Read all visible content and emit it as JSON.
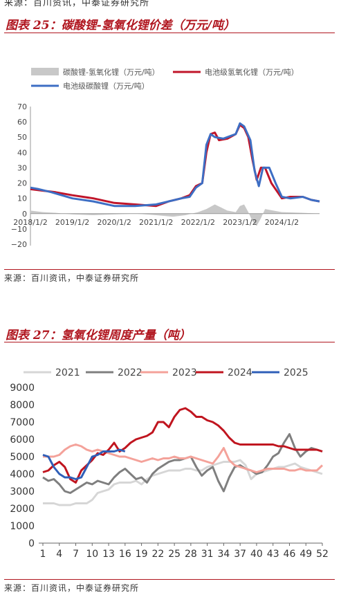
{
  "top_source": "来源：百川资讯，中泰证券研究所",
  "figures": [
    {
      "title": "图表 25：碳酸锂-氢氧化锂价差（万元/吨）",
      "source": "来源：百川资讯，中泰证券研究所",
      "chart_data": {
        "type": "line",
        "x_tick_labels": [
          "2018/1/2",
          "2019/1/2",
          "2020/1/2",
          "2021/1/2",
          "2022/1/2",
          "2023/1/2",
          "2024/1/2"
        ],
        "y_ticks": [
          -20,
          -10,
          0,
          10,
          20,
          30,
          40,
          50,
          60,
          70
        ],
        "ylim": [
          -20,
          70
        ],
        "xlim": [
          2018.0,
          2024.9
        ],
        "legend": "top",
        "series": [
          {
            "name": "碳酸锂-氢氧化锂（万元/吨）",
            "kind": "area",
            "color": "#c8c8c8",
            "points": [
              [
                2018.0,
                2
              ],
              [
                2018.3,
                1
              ],
              [
                2018.6,
                0.5
              ],
              [
                2019.0,
                -0.5
              ],
              [
                2019.5,
                -1
              ],
              [
                2020.0,
                -0.5
              ],
              [
                2020.5,
                0
              ],
              [
                2021.0,
                -1
              ],
              [
                2021.4,
                -2
              ],
              [
                2021.7,
                -1
              ],
              [
                2022.0,
                1
              ],
              [
                2022.2,
                3
              ],
              [
                2022.4,
                6
              ],
              [
                2022.55,
                4
              ],
              [
                2022.7,
                2
              ],
              [
                2022.9,
                1
              ],
              [
                2023.0,
                5
              ],
              [
                2023.1,
                6
              ],
              [
                2023.2,
                1
              ],
              [
                2023.3,
                -5
              ],
              [
                2023.4,
                -8
              ],
              [
                2023.5,
                -3
              ],
              [
                2023.6,
                3
              ],
              [
                2023.8,
                2
              ],
              [
                2024.0,
                1
              ],
              [
                2024.5,
                0.5
              ],
              [
                2024.9,
                0
              ]
            ]
          },
          {
            "name": "电池级氢氧化锂（万元/吨）",
            "kind": "line",
            "color": "#c0152a",
            "points": [
              [
                2018.0,
                16
              ],
              [
                2018.3,
                15
              ],
              [
                2018.6,
                14
              ],
              [
                2019.0,
                12
              ],
              [
                2019.5,
                10
              ],
              [
                2020.0,
                7
              ],
              [
                2020.5,
                6
              ],
              [
                2021.0,
                5
              ],
              [
                2021.3,
                8
              ],
              [
                2021.6,
                10
              ],
              [
                2021.8,
                12
              ],
              [
                2021.95,
                18
              ],
              [
                2022.1,
                20
              ],
              [
                2022.2,
                40
              ],
              [
                2022.3,
                52
              ],
              [
                2022.4,
                53
              ],
              [
                2022.5,
                48
              ],
              [
                2022.7,
                49
              ],
              [
                2022.9,
                52
              ],
              [
                2023.0,
                58
              ],
              [
                2023.1,
                56
              ],
              [
                2023.2,
                50
              ],
              [
                2023.3,
                35
              ],
              [
                2023.4,
                22
              ],
              [
                2023.5,
                30
              ],
              [
                2023.6,
                30
              ],
              [
                2023.75,
                20
              ],
              [
                2023.9,
                14
              ],
              [
                2024.0,
                10
              ],
              [
                2024.2,
                11
              ],
              [
                2024.5,
                11
              ],
              [
                2024.7,
                9
              ],
              [
                2024.9,
                8
              ]
            ]
          },
          {
            "name": "电池级碳酸锂（万元/吨）",
            "kind": "line",
            "color": "#3d6ec4",
            "points": [
              [
                2018.0,
                17
              ],
              [
                2018.2,
                16
              ],
              [
                2018.5,
                14
              ],
              [
                2019.0,
                10
              ],
              [
                2019.5,
                8
              ],
              [
                2020.0,
                5
              ],
              [
                2020.5,
                5
              ],
              [
                2021.0,
                6
              ],
              [
                2021.3,
                8
              ],
              [
                2021.6,
                10
              ],
              [
                2021.8,
                11
              ],
              [
                2021.95,
                17
              ],
              [
                2022.1,
                20
              ],
              [
                2022.2,
                45
              ],
              [
                2022.3,
                52
              ],
              [
                2022.4,
                50
              ],
              [
                2022.6,
                49
              ],
              [
                2022.9,
                52
              ],
              [
                2023.0,
                59
              ],
              [
                2023.1,
                57
              ],
              [
                2023.25,
                48
              ],
              [
                2023.35,
                28
              ],
              [
                2023.45,
                18
              ],
              [
                2023.55,
                30
              ],
              [
                2023.7,
                30
              ],
              [
                2023.85,
                20
              ],
              [
                2024.0,
                11
              ],
              [
                2024.2,
                10
              ],
              [
                2024.5,
                11
              ],
              [
                2024.7,
                9
              ],
              [
                2024.9,
                8
              ]
            ]
          }
        ]
      }
    },
    {
      "title": "图表 27：氢氧化锂周度产量（吨）",
      "source": "来源：百川资讯，中泰证券研究所",
      "chart_data": {
        "type": "line",
        "xlim": [
          1,
          52
        ],
        "x_ticks": [
          1,
          4,
          7,
          10,
          13,
          16,
          19,
          22,
          25,
          28,
          31,
          34,
          37,
          40,
          43,
          46,
          49,
          52
        ],
        "ylim": [
          0,
          9000
        ],
        "y_ticks": [
          0,
          1000,
          2000,
          3000,
          4000,
          5000,
          6000,
          7000,
          8000,
          9000
        ],
        "legend": "top",
        "series": [
          {
            "name": "2021",
            "color": "#d6d6d6",
            "x": [
              1,
              2,
              3,
              4,
              5,
              6,
              7,
              8,
              9,
              10,
              11,
              12,
              13,
              14,
              15,
              16,
              17,
              18,
              19,
              20,
              21,
              22,
              23,
              24,
              25,
              26,
              27,
              28,
              29,
              30,
              31,
              32,
              33,
              34,
              35,
              36,
              37,
              38,
              39,
              40,
              41,
              42,
              43,
              44,
              45,
              46,
              47,
              48,
              49,
              50,
              51,
              52
            ],
            "values": [
              2300,
              2300,
              2300,
              2200,
              2200,
              2200,
              2300,
              2300,
              2300,
              2500,
              2900,
              3000,
              3100,
              3400,
              3500,
              3500,
              3500,
              3600,
              3400,
              3700,
              3900,
              4000,
              4100,
              4200,
              4200,
              4200,
              4300,
              4300,
              4200,
              4200,
              4400,
              4500,
              4600,
              4700,
              4700,
              4700,
              4800,
              4500,
              3700,
              4000,
              4100,
              4200,
              4300,
              4400,
              4400,
              4500,
              4600,
              4400,
              4300,
              4200,
              4100,
              4000
            ]
          },
          {
            "name": "2022",
            "color": "#7f7f7f",
            "x": [
              1,
              2,
              3,
              4,
              5,
              6,
              7,
              8,
              9,
              10,
              11,
              12,
              13,
              14,
              15,
              16,
              17,
              18,
              19,
              20,
              21,
              22,
              23,
              24,
              25,
              26,
              27,
              28,
              29,
              30,
              31,
              32,
              33,
              34,
              35,
              36,
              37,
              38,
              39,
              40,
              41,
              42,
              43,
              44,
              45,
              46,
              47,
              48,
              49,
              50,
              51,
              52
            ],
            "values": [
              3800,
              3600,
              3700,
              3400,
              3000,
              2900,
              3100,
              3300,
              3500,
              3400,
              3600,
              3500,
              3400,
              3800,
              4100,
              4300,
              4000,
              3700,
              3800,
              3500,
              4000,
              4300,
              4500,
              4700,
              4800,
              4800,
              4900,
              5000,
              4400,
              3900,
              4200,
              4400,
              3600,
              3000,
              3800,
              4400,
              4500,
              4300,
              4200,
              4000,
              4100,
              4500,
              5000,
              5200,
              5800,
              6300,
              5500,
              5000,
              5300,
              5500,
              5400,
              5300
            ]
          },
          {
            "name": "2023",
            "color": "#f4a29a",
            "x": [
              1,
              2,
              3,
              4,
              5,
              6,
              7,
              8,
              9,
              10,
              11,
              12,
              13,
              14,
              15,
              16,
              17,
              18,
              19,
              20,
              21,
              22,
              23,
              24,
              25,
              26,
              27,
              28,
              29,
              30,
              31,
              32,
              33,
              34,
              35,
              36,
              37,
              38,
              39,
              40,
              41,
              42,
              43,
              44,
              45,
              46,
              47,
              48,
              49,
              50,
              51,
              52
            ],
            "values": [
              5000,
              5000,
              5000,
              5100,
              5400,
              5600,
              5700,
              5600,
              5400,
              5300,
              5400,
              5300,
              5200,
              5100,
              5000,
              5000,
              4900,
              4800,
              4700,
              4800,
              4900,
              4800,
              4900,
              4900,
              5000,
              4900,
              4900,
              5000,
              4900,
              4800,
              4700,
              4600,
              5000,
              5500,
              4800,
              4500,
              4400,
              4300,
              4200,
              4100,
              4200,
              4300,
              4300,
              4300,
              4300,
              4200,
              4200,
              4300,
              4200,
              4200,
              4200,
              4500
            ]
          },
          {
            "name": "2024",
            "color": "#c0151f",
            "x": [
              1,
              2,
              3,
              4,
              5,
              6,
              7,
              8,
              9,
              10,
              11,
              12,
              13,
              14,
              15,
              16,
              17,
              18,
              19,
              20,
              21,
              22,
              23,
              24,
              25,
              26,
              27,
              28,
              29,
              30,
              31,
              32,
              33,
              34,
              35,
              36,
              37,
              38,
              39,
              40,
              41,
              42,
              43,
              44,
              45,
              46,
              47,
              48,
              49,
              50,
              51,
              52
            ],
            "values": [
              4100,
              4200,
              4500,
              4700,
              4400,
              3700,
              3500,
              4200,
              4500,
              4800,
              5200,
              5100,
              5400,
              5800,
              5300,
              5500,
              5800,
              6000,
              6100,
              6200,
              6400,
              7000,
              7000,
              6700,
              7300,
              7700,
              7800,
              7600,
              7300,
              7300,
              7100,
              7000,
              6800,
              6500,
              6100,
              5800,
              5700,
              5700,
              5700,
              5700,
              5700,
              5700,
              5700,
              5600,
              5600,
              5500,
              5400,
              5400,
              5400,
              5400,
              5400,
              5300
            ]
          },
          {
            "name": "2025",
            "color": "#2f5fb8",
            "x": [
              1,
              2,
              3,
              4,
              5,
              6,
              7,
              8,
              9,
              10,
              11,
              12,
              13,
              14,
              15,
              16
            ],
            "values": [
              5100,
              5000,
              4400,
              4000,
              3800,
              3800,
              3700,
              3800,
              4400,
              5000,
              5100,
              5300,
              5300,
              5300,
              5400,
              5300
            ]
          }
        ]
      }
    }
  ]
}
